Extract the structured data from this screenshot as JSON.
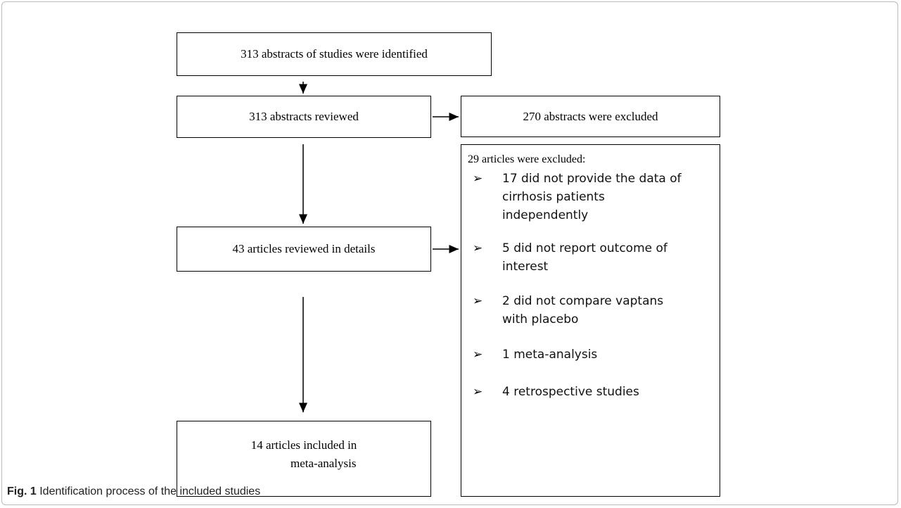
{
  "nodes": [
    {
      "label": [
        "313 abstracts of studies were identified"
      ]
    },
    {
      "label": [
        "313 abstracts reviewed"
      ]
    },
    {
      "label": [
        "270 abstracts were excluded"
      ]
    },
    {
      "label": [
        "43 articles reviewed in details"
      ]
    },
    {
      "label": [
        "14 articles included in",
        "meta-analysis"
      ]
    }
  ],
  "exclusions": {
    "title": "29 articles were excluded:",
    "items": [
      [
        "17 did not provide the data of",
        "cirrhosis patients",
        "independently"
      ],
      [
        "5 did not report outcome of",
        "interest"
      ],
      [
        "2 did not compare vaptans",
        "with placebo"
      ],
      [
        "1 meta-analysis"
      ],
      [
        "4 retrospective studies"
      ]
    ]
  },
  "caption": {
    "label": "Fig. 1",
    "text": "Identification process of the included studies"
  }
}
